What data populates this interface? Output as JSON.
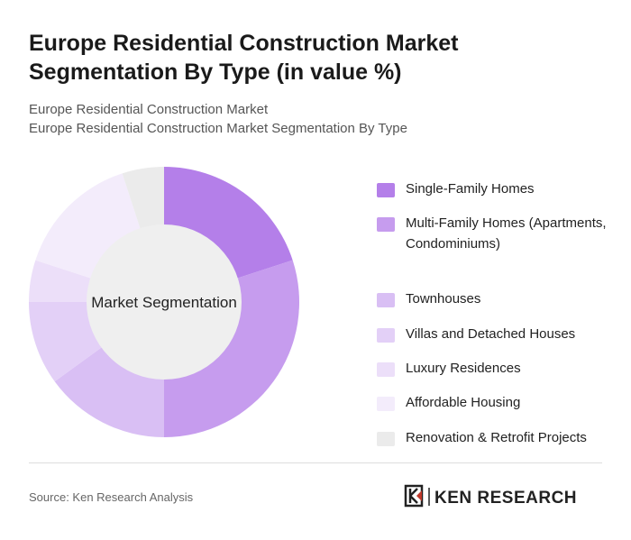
{
  "chart_data": {
    "type": "donut",
    "title": "Europe Residential Construction Market Segmentation By Type (in value %)",
    "subtitle": [
      "Europe Residential Construction Market",
      "Europe Residential Construction Market Segmentation By Type"
    ],
    "center_label": "Market Segmentation",
    "categories": [
      "Single-Family Homes",
      "Multi-Family Homes (Apartments, Condominiums)",
      "Townhouses",
      "Villas and Detached Houses",
      "Luxury Residences",
      "Affordable Housing",
      "Renovation & Retrofit Projects"
    ],
    "values": [
      20,
      30,
      15,
      10,
      5,
      15,
      5
    ],
    "colors": [
      "#b47fe9",
      "#c69cee",
      "#d9bff4",
      "#e3d0f7",
      "#ecdff9",
      "#f3ecfb",
      "#ebebeb"
    ],
    "legend": "right"
  },
  "source": "Source: Ken Research Analysis",
  "logo": "KEN RESEARCH"
}
